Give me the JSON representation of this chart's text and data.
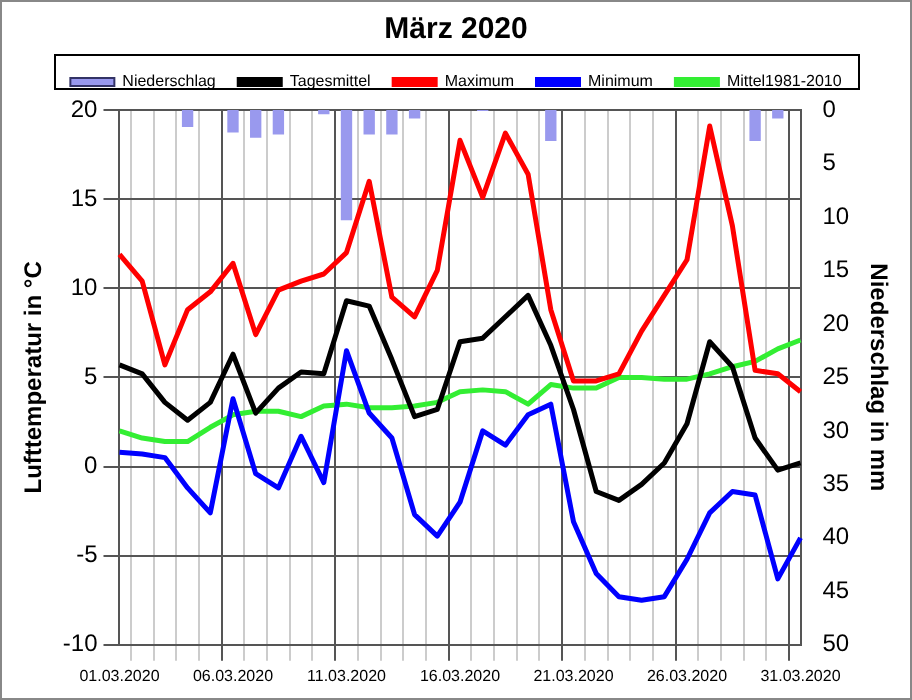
{
  "chart_data": {
    "type": "line",
    "title": "März 2020",
    "ylabel": "Lufttemperatur in °C",
    "y2label": "Niederschlag in mm",
    "categories": [
      "01.03.2020",
      null,
      null,
      null,
      null,
      "06.03.2020",
      null,
      null,
      null,
      null,
      "11.03.2020",
      null,
      null,
      null,
      null,
      "16.03.2020",
      null,
      null,
      null,
      null,
      "21.03.2020",
      null,
      null,
      null,
      null,
      "26.03.2020",
      null,
      null,
      null,
      null,
      "31.03.2020"
    ],
    "series": [
      {
        "name": "Niederschlag",
        "type": "bar",
        "axis": "y2",
        "color": "#9999ee",
        "values": [
          null,
          null,
          null,
          1.6,
          null,
          2.1,
          2.6,
          2.3,
          null,
          0.4,
          10.3,
          2.3,
          2.3,
          0.8,
          null,
          null,
          0.1,
          null,
          null,
          2.9,
          null,
          null,
          null,
          null,
          null,
          null,
          null,
          null,
          2.9,
          0.8,
          null
        ]
      },
      {
        "name": "Tagesmittel",
        "color": "#000000",
        "values": [
          5.7,
          5.2,
          3.6,
          2.6,
          3.6,
          6.3,
          3.0,
          4.4,
          5.3,
          5.2,
          9.3,
          9.0,
          6.0,
          2.8,
          3.2,
          7.0,
          7.2,
          8.4,
          9.6,
          6.8,
          3.2,
          -1.4,
          -1.9,
          -1.0,
          0.2,
          2.4,
          7.0,
          5.6,
          1.6,
          -0.2,
          0.2
        ]
      },
      {
        "name": "Maximum",
        "color": "#ff0000",
        "values": [
          11.9,
          10.4,
          5.7,
          8.8,
          9.8,
          11.4,
          7.4,
          9.9,
          10.4,
          10.8,
          12.0,
          16.0,
          9.5,
          8.4,
          11.0,
          18.3,
          15.1,
          18.7,
          16.4,
          8.8,
          4.8,
          4.8,
          5.2,
          7.6,
          9.6,
          11.6,
          19.1,
          13.5,
          5.4,
          5.2,
          4.2
        ]
      },
      {
        "name": "Minimum",
        "color": "#0000ff",
        "values": [
          0.8,
          0.7,
          0.5,
          -1.2,
          -2.6,
          3.8,
          -0.4,
          -1.2,
          1.7,
          -0.9,
          6.5,
          3.0,
          1.6,
          -2.7,
          -3.9,
          -2.0,
          2.0,
          1.2,
          2.9,
          3.5,
          -3.1,
          -6.0,
          -7.3,
          -7.5,
          -7.3,
          -5.2,
          -2.6,
          -1.4,
          -1.6,
          -6.3,
          -4.0
        ]
      },
      {
        "name": "Mittel1981-2010",
        "color": "#33ee33",
        "values": [
          2.0,
          1.6,
          1.4,
          1.4,
          2.2,
          2.9,
          3.1,
          3.1,
          2.8,
          3.4,
          3.5,
          3.3,
          3.3,
          3.4,
          3.6,
          4.2,
          4.3,
          4.2,
          3.5,
          4.6,
          4.4,
          4.4,
          5.0,
          5.0,
          4.9,
          4.9,
          5.2,
          5.6,
          5.9,
          6.6,
          7.1
        ]
      }
    ],
    "ylim": [
      -10,
      20
    ],
    "yticks": [
      -10,
      -5,
      0,
      5,
      10,
      15,
      20
    ],
    "y2lim": [
      50,
      0
    ],
    "y2ticks": [
      0,
      5,
      10,
      15,
      20,
      25,
      30,
      35,
      40,
      45,
      50
    ],
    "grid": true,
    "legend": "top",
    "marker": "none",
    "line_style": "solid"
  }
}
